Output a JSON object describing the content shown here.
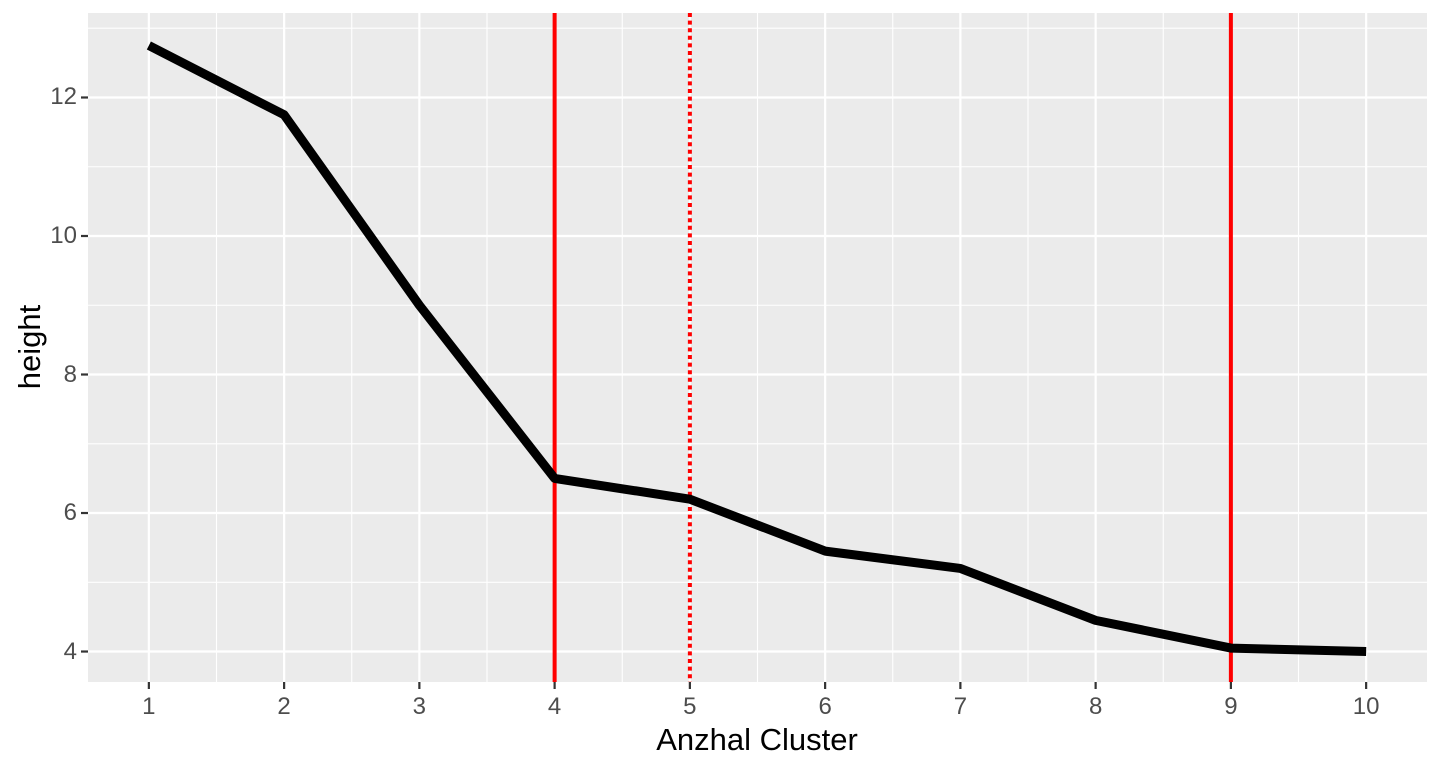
{
  "figure": {
    "background": "#FFFFFF"
  },
  "chart_data": {
    "type": "line",
    "title": "",
    "xlabel": "Anzhal Cluster",
    "ylabel": "height",
    "x": [
      1,
      2,
      3,
      4,
      5,
      6,
      7,
      8,
      9,
      10
    ],
    "series": [
      {
        "name": "height",
        "color": "#000000",
        "stroke_width": 9,
        "values": [
          12.75,
          11.75,
          9.0,
          6.5,
          6.2,
          5.45,
          5.2,
          4.45,
          4.05,
          4.0
        ]
      }
    ],
    "vlines": [
      {
        "x": 4,
        "style": "solid",
        "color": "#FF0000",
        "width": 4
      },
      {
        "x": 5,
        "style": "dotted",
        "color": "#FF0000",
        "width": 4
      },
      {
        "x": 9,
        "style": "solid",
        "color": "#FF0000",
        "width": 4
      }
    ],
    "x_ticks": [
      "1",
      "2",
      "3",
      "4",
      "5",
      "6",
      "7",
      "8",
      "9",
      "10"
    ],
    "x_tick_values": [
      1,
      2,
      3,
      4,
      5,
      6,
      7,
      8,
      9,
      10
    ],
    "y_ticks": [
      "4",
      "6",
      "8",
      "10",
      "12"
    ],
    "y_tick_values": [
      4,
      6,
      8,
      10,
      12
    ],
    "x_minor": [
      1.5,
      2.5,
      3.5,
      4.5,
      5.5,
      6.5,
      7.5,
      8.5,
      9.5
    ],
    "y_minor": [
      5,
      7,
      9,
      11,
      13
    ],
    "xlim": [
      0.55,
      10.45
    ],
    "ylim": [
      3.56,
      13.22
    ],
    "grid": true,
    "legend": "none",
    "panel_background": "#EBEBEB",
    "grid_color": "#FFFFFF",
    "tick_color": "#333333",
    "tick_label_color": "#4D4D4D",
    "axis_title_color": "#000000"
  }
}
